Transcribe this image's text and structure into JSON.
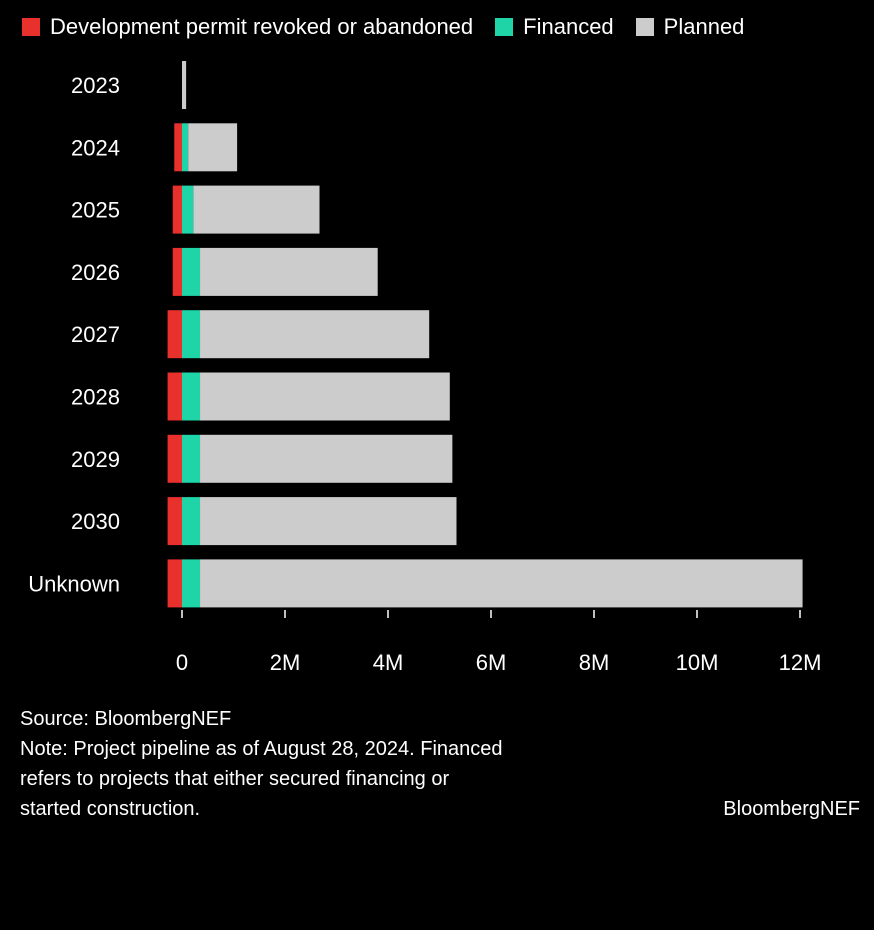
{
  "colors": {
    "revoked": "#e8302c",
    "financed": "#1fd4a7",
    "planned": "#cccccc",
    "axis_text": "#ffffff",
    "tick": "#ffffff"
  },
  "chart_data": {
    "type": "bar",
    "orientation": "horizontal",
    "stacked": true,
    "categories": [
      "2023",
      "2024",
      "2025",
      "2026",
      "2027",
      "2028",
      "2029",
      "2030",
      "Unknown"
    ],
    "series": [
      {
        "name": "Development permit revoked or abandoned",
        "color": "#e8302c",
        "values": [
          0,
          -0.15,
          -0.18,
          -0.18,
          -0.28,
          -0.28,
          -0.28,
          -0.28,
          -0.28
        ]
      },
      {
        "name": "Financed",
        "color": "#1fd4a7",
        "values": [
          0,
          0.12,
          0.22,
          0.35,
          0.35,
          0.35,
          0.35,
          0.35,
          0.35
        ]
      },
      {
        "name": "Planned",
        "color": "#cccccc",
        "values": [
          0.08,
          0.95,
          2.45,
          3.45,
          4.45,
          4.85,
          4.9,
          4.98,
          11.7
        ]
      }
    ],
    "xlim": [
      -0.35,
      12.2
    ],
    "xticks": [
      0,
      2,
      4,
      6,
      8,
      10,
      12
    ],
    "xtick_labels": [
      "0",
      "2M",
      "4M",
      "6M",
      "8M",
      "10M",
      "12M"
    ],
    "grid": false,
    "legend_position": "top-left"
  },
  "footer": {
    "source": "Source: BloombergNEF",
    "note_lines": [
      "Note: Project pipeline as of August 28, 2024. Financed",
      "refers to projects that either secured financing or",
      "started construction."
    ],
    "brand": "BloombergNEF"
  }
}
